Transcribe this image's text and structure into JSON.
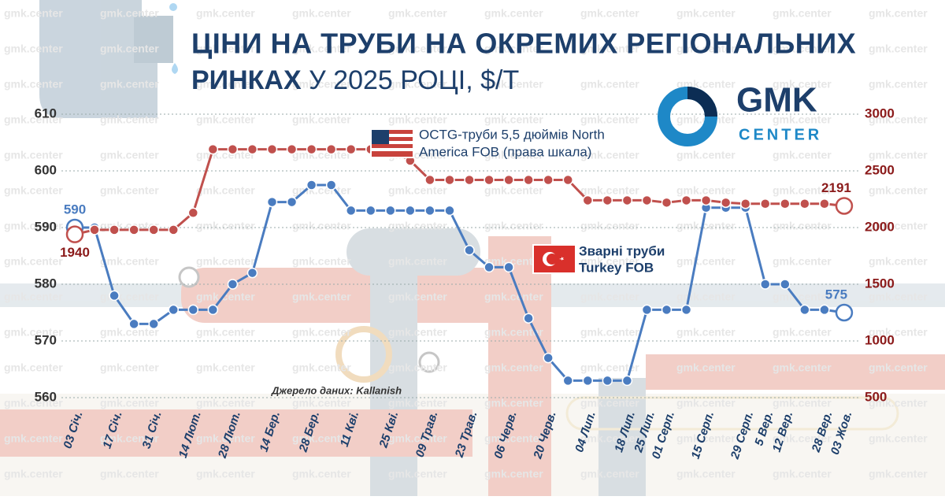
{
  "chart_data": {
    "type": "line",
    "title_bold": "ЦІНИ НА ТРУБИ НА ОКРЕМИХ РЕГІОНАЛЬНИХ",
    "title_bold_2": "РИНКАХ",
    "title_rest": "У 2025  РОЦІ, $/Т",
    "source": "Джерело даних: Kallanish",
    "logo_main": "GMK",
    "logo_sub": "CENTER",
    "watermark": "gmk.center",
    "categories": [
      "03 Січ.",
      null,
      "17 Січ.",
      null,
      "31 Січ.",
      null,
      "14 Лют.",
      null,
      "28 Лют.",
      null,
      "14 Бер.",
      null,
      "28 Бер.",
      null,
      "11 Кві.",
      null,
      "25 Кві.",
      null,
      "09 Трав.",
      null,
      "23 Трав.",
      null,
      "06 Черв.",
      null,
      "20 Черв.",
      null,
      "04 Лип.",
      null,
      "18 Лип.",
      "25 Лип.",
      "01 Серп.",
      null,
      "15 Серп.",
      null,
      "29 Серп.",
      "5 Вер.",
      "12 Вер.",
      null,
      "28 Вер.",
      "03 Жов."
    ],
    "series": [
      {
        "name": "Зварні труби Turkey FOB",
        "name_line1": "Зварні труби",
        "name_line2": "Turkey FOB",
        "color": "#4a7cc0",
        "values": [
          590,
          590,
          578,
          573,
          573,
          575.5,
          575.5,
          575.5,
          580,
          582,
          594.5,
          594.5,
          597.5,
          597.5,
          593,
          593,
          593,
          593,
          593,
          593,
          586,
          583,
          583,
          574,
          567,
          563,
          563,
          563,
          563,
          575.5,
          575.5,
          575.5,
          593.5,
          593.5,
          593.5,
          580,
          580,
          575.5,
          575.5,
          575
        ]
      },
      {
        "name": "OCTG-труби 5,5 дюймів North America FOB (права шкала)",
        "name_line1": "OCTG-труби 5,5 дюймів North",
        "name_line2": "America FOB (права шкала)",
        "color": "#c0504d",
        "axis": "y2",
        "values": [
          1940,
          1980,
          1980,
          1980,
          1980,
          1980,
          2130,
          2690,
          2690,
          2690,
          2690,
          2690,
          2690,
          2690,
          2690,
          2690,
          2690,
          2590,
          2420,
          2420,
          2420,
          2420,
          2420,
          2420,
          2420,
          2420,
          2240,
          2240,
          2240,
          2240,
          2220,
          2240,
          2240,
          2220,
          2210,
          2210,
          2210,
          2210,
          2210,
          2191
        ]
      }
    ],
    "ylim": [
      560,
      610
    ],
    "yticks": [
      560,
      570,
      580,
      590,
      600,
      610
    ],
    "y2lim": [
      500,
      3000
    ],
    "y2ticks": [
      500,
      1000,
      1500,
      2000,
      2500,
      3000
    ],
    "grid": true
  }
}
